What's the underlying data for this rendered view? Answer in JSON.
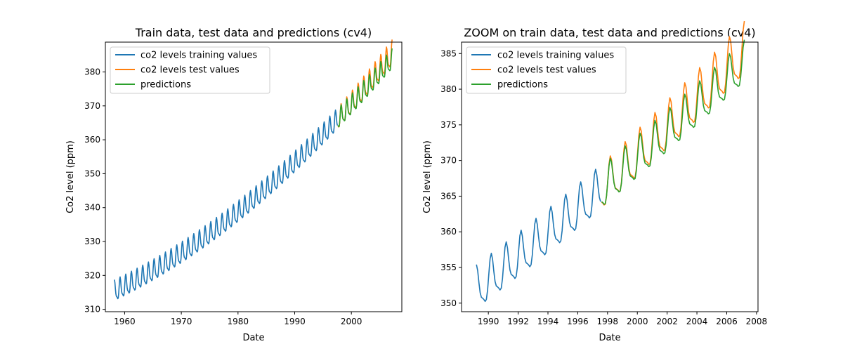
{
  "chart_data": [
    {
      "type": "line",
      "title": "Train data, test data and predictions (cv4)",
      "xlabel": "Date",
      "ylabel": "Co2 level (ppm)",
      "xlim": [
        1956.6,
        2008.9
      ],
      "ylim": [
        309.3,
        388.8
      ],
      "xticks": [
        1960,
        1970,
        1980,
        1990,
        2000
      ],
      "yticks": [
        310,
        320,
        330,
        340,
        350,
        360,
        370,
        380
      ],
      "grid": false,
      "legend_position": "top-left",
      "series": [
        {
          "name": "co2 levels training values",
          "color": "#1f77b4",
          "start": 1958.2,
          "end": 1997.6
        },
        {
          "name": "co2 levels test values",
          "color": "#ff7f0e",
          "start": 1997.6,
          "end": 2007.2
        },
        {
          "name": "predictions",
          "color": "#2ca02c",
          "start": 1997.6,
          "end": 2007.2
        }
      ]
    },
    {
      "type": "line",
      "title": "ZOOM on train data, test data and predictions (cv4)",
      "xlabel": "Date",
      "ylabel": "Co2 level (ppm)",
      "xlim": [
        1988.2,
        2008.1
      ],
      "ylim": [
        348.8,
        386.6
      ],
      "xticks": [
        1990,
        1992,
        1994,
        1996,
        1998,
        2000,
        2002,
        2004,
        2006,
        2008
      ],
      "yticks": [
        350,
        355,
        360,
        365,
        370,
        375,
        380,
        385
      ],
      "grid": false,
      "legend_position": "top-left",
      "series": [
        {
          "name": "co2 levels training values",
          "color": "#1f77b4",
          "start": 1989.2,
          "end": 1997.6
        },
        {
          "name": "co2 levels test values",
          "color": "#ff7f0e",
          "start": 1997.6,
          "end": 2007.2
        },
        {
          "name": "predictions",
          "color": "#2ca02c",
          "start": 1997.6,
          "end": 2007.2
        }
      ]
    }
  ]
}
